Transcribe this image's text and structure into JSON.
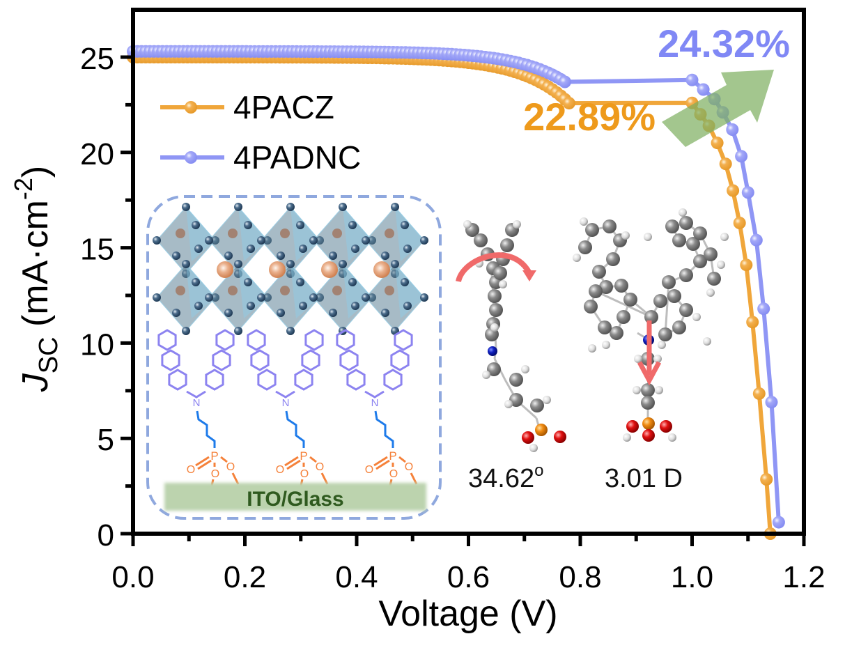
{
  "chart_data": {
    "type": "line",
    "title": "",
    "xlabel": "Voltage (V)",
    "ylabel": "J_SC (mA·cm^-2)",
    "ylabel_parts": {
      "main": "J",
      "sub": "SC",
      "units_open": " (mA·cm",
      "sup": "-2",
      "units_close": ")"
    },
    "xlim": [
      0.0,
      1.2
    ],
    "ylim": [
      0,
      27.5
    ],
    "xticks": [
      "0.0",
      "0.2",
      "0.4",
      "0.6",
      "0.8",
      "1.0",
      "1.2"
    ],
    "xtick_values": [
      0.0,
      0.2,
      0.4,
      0.6,
      0.8,
      1.0,
      1.2
    ],
    "yticks": [
      "0",
      "5",
      "10",
      "15",
      "20",
      "25"
    ],
    "ytick_values": [
      0,
      5,
      10,
      15,
      20,
      25
    ],
    "grid": false,
    "legend_position": "top-left",
    "series": [
      {
        "name": "4PACZ",
        "color": "#F0A63A",
        "jsc": 25.0,
        "voc": 1.14,
        "pce_label": "22.89%",
        "points": [
          [
            0.0,
            25.0
          ],
          [
            0.02,
            25.0
          ],
          [
            0.04,
            25.0
          ],
          [
            0.06,
            25.0
          ],
          [
            0.08,
            24.99
          ],
          [
            0.1,
            24.99
          ],
          [
            0.12,
            24.99
          ],
          [
            0.14,
            24.98
          ],
          [
            0.16,
            24.98
          ],
          [
            0.18,
            24.98
          ],
          [
            0.2,
            24.97
          ],
          [
            0.22,
            24.97
          ],
          [
            0.24,
            24.96
          ],
          [
            0.26,
            24.96
          ],
          [
            0.28,
            24.95
          ],
          [
            0.3,
            24.95
          ],
          [
            0.32,
            24.94
          ],
          [
            0.34,
            24.94
          ],
          [
            0.36,
            24.93
          ],
          [
            0.38,
            24.92
          ],
          [
            0.4,
            24.92
          ],
          [
            0.42,
            24.91
          ],
          [
            0.44,
            24.9
          ],
          [
            0.46,
            24.89
          ],
          [
            0.48,
            24.88
          ],
          [
            0.5,
            24.87
          ],
          [
            0.52,
            24.86
          ],
          [
            0.54,
            24.84
          ],
          [
            0.56,
            24.83
          ],
          [
            0.58,
            24.81
          ],
          [
            0.6,
            24.79
          ],
          [
            0.62,
            24.77
          ],
          [
            0.64,
            24.74
          ],
          [
            0.66,
            24.71
          ],
          [
            0.68,
            24.68
          ],
          [
            0.7,
            24.64
          ],
          [
            0.72,
            24.6
          ],
          [
            0.74,
            24.54
          ],
          [
            0.76,
            24.47
          ],
          [
            0.78,
            24.39
          ],
          [
            0.8,
            24.29
          ],
          [
            0.82,
            24.16
          ],
          [
            0.84,
            24.0
          ],
          [
            0.86,
            23.8
          ],
          [
            0.88,
            23.55
          ],
          [
            0.9,
            23.23
          ],
          [
            0.92,
            22.83
          ],
          [
            0.94,
            22.33
          ],
          [
            0.96,
            21.68
          ],
          [
            0.98,
            20.88
          ],
          [
            1.0,
            22.6
          ],
          [
            1.015,
            22.0
          ],
          [
            1.03,
            21.4
          ],
          [
            1.045,
            20.5
          ],
          [
            1.06,
            19.4
          ],
          [
            1.073,
            18.0
          ],
          [
            1.085,
            16.3
          ],
          [
            1.097,
            14.1
          ],
          [
            1.108,
            11.1
          ],
          [
            1.12,
            7.35
          ],
          [
            1.133,
            2.85
          ],
          [
            1.14,
            0.0
          ]
        ]
      },
      {
        "name": "4PADNC",
        "color": "#8F96F5",
        "jsc": 25.3,
        "voc": 1.16,
        "pce_label": "24.32%",
        "points": [
          [
            0.0,
            25.3
          ],
          [
            0.02,
            25.3
          ],
          [
            0.04,
            25.29
          ],
          [
            0.06,
            25.29
          ],
          [
            0.08,
            25.29
          ],
          [
            0.1,
            25.28
          ],
          [
            0.12,
            25.28
          ],
          [
            0.14,
            25.27
          ],
          [
            0.16,
            25.27
          ],
          [
            0.18,
            25.26
          ],
          [
            0.2,
            25.26
          ],
          [
            0.22,
            25.25
          ],
          [
            0.24,
            25.25
          ],
          [
            0.26,
            25.24
          ],
          [
            0.28,
            25.23
          ],
          [
            0.3,
            25.23
          ],
          [
            0.32,
            25.22
          ],
          [
            0.34,
            25.21
          ],
          [
            0.36,
            25.21
          ],
          [
            0.38,
            25.2
          ],
          [
            0.4,
            25.19
          ],
          [
            0.42,
            25.18
          ],
          [
            0.44,
            25.17
          ],
          [
            0.46,
            25.16
          ],
          [
            0.48,
            25.15
          ],
          [
            0.5,
            25.14
          ],
          [
            0.52,
            25.13
          ],
          [
            0.54,
            25.11
          ],
          [
            0.56,
            25.1
          ],
          [
            0.58,
            25.08
          ],
          [
            0.6,
            25.06
          ],
          [
            0.62,
            25.04
          ],
          [
            0.64,
            25.02
          ],
          [
            0.66,
            24.99
          ],
          [
            0.68,
            24.96
          ],
          [
            0.7,
            24.93
          ],
          [
            0.72,
            24.89
          ],
          [
            0.74,
            24.84
          ],
          [
            0.76,
            24.79
          ],
          [
            0.78,
            24.72
          ],
          [
            0.8,
            24.64
          ],
          [
            0.82,
            24.54
          ],
          [
            0.84,
            24.42
          ],
          [
            0.86,
            24.27
          ],
          [
            0.88,
            24.09
          ],
          [
            0.9,
            23.86
          ],
          [
            0.92,
            23.58
          ],
          [
            0.94,
            23.23
          ],
          [
            0.96,
            22.8
          ],
          [
            0.98,
            22.27
          ],
          [
            1.0,
            23.8
          ],
          [
            1.02,
            23.3
          ],
          [
            1.04,
            22.8
          ],
          [
            1.055,
            22.1
          ],
          [
            1.072,
            21.2
          ],
          [
            1.088,
            19.8
          ],
          [
            1.1,
            17.9
          ],
          [
            1.115,
            15.4
          ],
          [
            1.128,
            11.8
          ],
          [
            1.142,
            6.9
          ],
          [
            1.155,
            0.6
          ]
        ]
      }
    ],
    "annotations": [
      {
        "text": "24.32%",
        "color": "#8088F5",
        "position": "top-right"
      },
      {
        "text": "22.89%",
        "color": "#EE9A1C",
        "position": "upper-right, left of arrow"
      },
      {
        "text": "34.62°",
        "position": "below tilted molecule"
      },
      {
        "text": "3.01 D",
        "position": "below dipole molecule"
      },
      {
        "text": "ITO/Glass",
        "position": "inset bottom substrate"
      },
      {
        "text": "N",
        "position": "carbazole nitrogen in inset structures"
      },
      {
        "text": "P",
        "position": "phosphonic anchor in inset structures"
      },
      {
        "text": "O",
        "position": "phosphonic oxygens in inset structures"
      }
    ]
  },
  "inset": {
    "substrate_label": "ITO/Glass",
    "molecule_count": 3,
    "atom_labels": {
      "nitrogen": "N",
      "phosphorus": "P",
      "oxygen": "O"
    },
    "colors": {
      "frame": "#8FA8DE",
      "molecule": "#8C83F0",
      "linker": "#1E7BEA",
      "anchor": "#F5813A",
      "substrate": "#BCD3AE",
      "octahedra": "#6E8FA3",
      "a_site": "#E0A07A"
    }
  },
  "molecules": {
    "tilt_angle_label": "34.62",
    "tilt_angle_unit": "o",
    "dipole_label": "3.01 D"
  },
  "arrow": {
    "color": "#8DBB6E",
    "meaning": "efficiency increase"
  }
}
